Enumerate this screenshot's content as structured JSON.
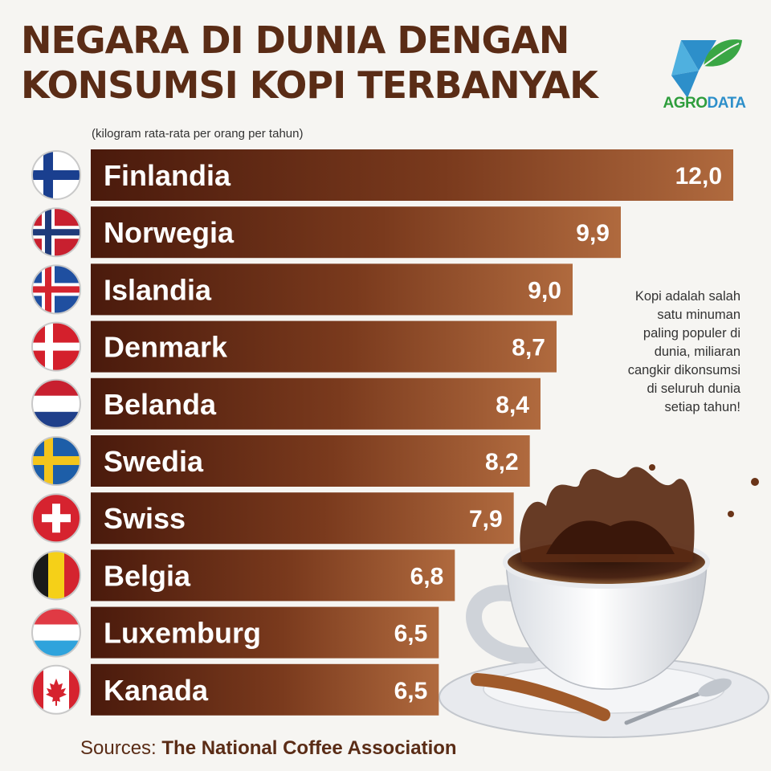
{
  "title": {
    "line1": "NEGARA DI DUNIA DENGAN",
    "line2": "KONSUMSI KOPI TERBANYAK"
  },
  "subtitle": "(kilogram rata-rata per orang per tahun)",
  "logo": {
    "text_part1": "AGRO",
    "text_part2": "DATA"
  },
  "note": "Kopi adalah salah\nsatu minuman\npaling populer di\ndunia, miliaran\ncangkir dikonsumsi\ndi seluruh dunia\nsetiap tahun!",
  "source": {
    "label": "Sources:",
    "name": "The National Coffee Association"
  },
  "colors": {
    "bar_dark": "#4a1a0c",
    "bar_light": "#b06a3e",
    "title": "#5a2c16"
  },
  "chart_data": {
    "type": "bar",
    "orientation": "horizontal",
    "categories": [
      "Finlandia",
      "Norwegia",
      "Islandia",
      "Denmark",
      "Belanda",
      "Swedia",
      "Swiss",
      "Belgia",
      "Luxemburg",
      "Kanada"
    ],
    "values": [
      12.0,
      9.9,
      9.0,
      8.7,
      8.4,
      8.2,
      7.9,
      6.8,
      6.5,
      6.5
    ],
    "value_labels": [
      "12,0",
      "9,9",
      "9,0",
      "8,7",
      "8,4",
      "8,2",
      "7,9",
      "6,8",
      "6,5",
      "6,5"
    ],
    "flags": [
      "finland-flag-icon",
      "norway-flag-icon",
      "iceland-flag-icon",
      "denmark-flag-icon",
      "netherlands-flag-icon",
      "sweden-flag-icon",
      "switzerland-flag-icon",
      "belgium-flag-icon",
      "luxembourg-flag-icon",
      "canada-flag-icon"
    ],
    "title": "NEGARA DI DUNIA DENGAN KONSUMSI KOPI TERBANYAK",
    "xlabel": "",
    "ylabel": "",
    "xlim": [
      0,
      12
    ]
  }
}
